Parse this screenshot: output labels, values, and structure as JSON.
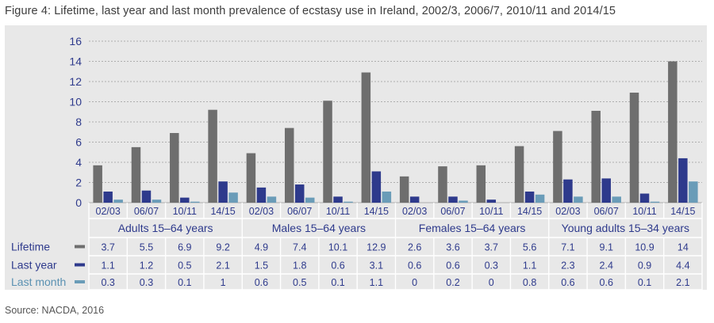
{
  "title": "Figure 4: Lifetime, last year and last month prevalence of ecstasy use in Ireland, 2002/3, 2006/7, 2010/11 and 2014/15",
  "source": "Source: NACDA, 2016",
  "colors": {
    "panel": "#e8e8e8",
    "Lifetime": "#6e6e6e",
    "Last year": "#2e3a8c",
    "Last month": "#6a9cb8",
    "text_blue": "#2e3a8c",
    "text_lightblue": "#5a91b2",
    "grid": "#9a9a9a"
  },
  "chart_data": {
    "type": "bar",
    "ylim": [
      0,
      16
    ],
    "yticks": [
      0,
      2,
      4,
      6,
      8,
      10,
      12,
      14,
      16
    ],
    "grid": true,
    "legend": "table-left",
    "groups": [
      "Adults 15–64 years",
      "Males 15–64 years",
      "Females 15–64 years",
      "Young adults 15–34 years"
    ],
    "periods": [
      "02/03",
      "06/07",
      "10/11",
      "14/15"
    ],
    "categories": [
      "02/03",
      "06/07",
      "10/11",
      "14/15",
      "02/03",
      "06/07",
      "10/11",
      "14/15",
      "02/03",
      "06/07",
      "10/11",
      "14/15",
      "02/03",
      "06/07",
      "10/11",
      "14/15"
    ],
    "series": [
      {
        "name": "Lifetime",
        "values": [
          3.7,
          5.5,
          6.9,
          9.2,
          4.9,
          7.4,
          10.1,
          12.9,
          2.6,
          3.6,
          3.7,
          5.6,
          7.1,
          9.1,
          10.9,
          14
        ]
      },
      {
        "name": "Last year",
        "values": [
          1.1,
          1.2,
          0.5,
          2.1,
          1.5,
          1.8,
          0.6,
          3.1,
          0.6,
          0.6,
          0.3,
          1.1,
          2.3,
          2.4,
          0.9,
          4.4
        ]
      },
      {
        "name": "Last month",
        "values": [
          0.3,
          0.3,
          0.1,
          1,
          0.6,
          0.5,
          0.1,
          1.1,
          0,
          0.2,
          0,
          0.8,
          0.6,
          0.6,
          0.1,
          2.1
        ]
      }
    ]
  }
}
